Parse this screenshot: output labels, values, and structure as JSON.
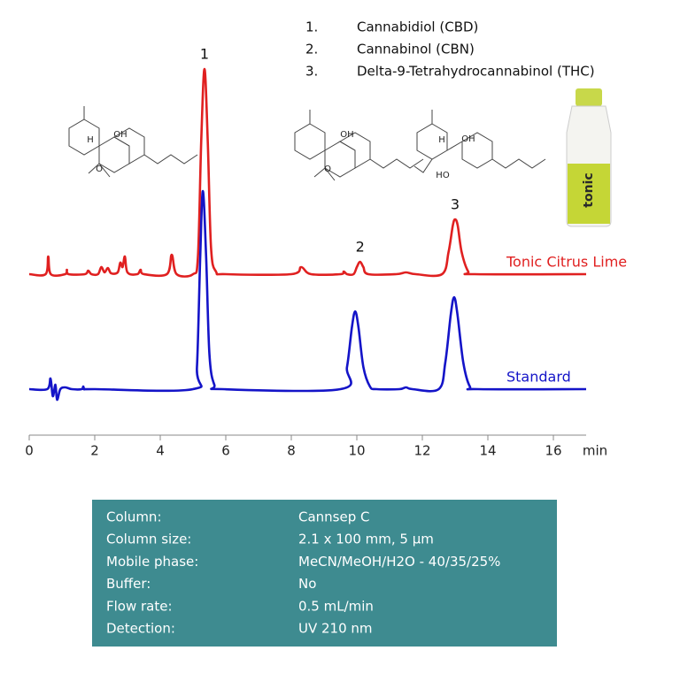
{
  "chart_data": {
    "type": "line",
    "x_label": "min",
    "xlim": [
      0,
      17
    ],
    "xticks": [
      0,
      2,
      4,
      6,
      8,
      10,
      12,
      14,
      16
    ],
    "ylim": [
      -20,
      240
    ],
    "series": [
      {
        "name": "Tonic Citrus Lime",
        "color": "#e02020",
        "x": [
          0,
          0.5,
          0.58,
          0.66,
          1.1,
          1.15,
          1.2,
          1.7,
          1.8,
          1.9,
          2.1,
          2.2,
          2.3,
          2.4,
          2.5,
          2.7,
          2.78,
          2.85,
          2.92,
          3.0,
          3.3,
          3.4,
          3.5,
          4.2,
          4.35,
          4.5,
          5.0,
          5.15,
          5.25,
          5.35,
          5.45,
          5.55,
          5.7,
          6.0,
          8.0,
          8.3,
          8.6,
          9.5,
          9.6,
          9.7,
          9.9,
          10.0,
          10.1,
          10.2,
          10.35,
          11.2,
          11.5,
          11.8,
          12.6,
          12.8,
          12.93,
          13.0,
          13.08,
          13.2,
          13.4,
          13.6,
          17
        ],
        "values": [
          0,
          0,
          20,
          0,
          0,
          5,
          0,
          0,
          4,
          0,
          0,
          8,
          2,
          7,
          1,
          2,
          13,
          8,
          20,
          2,
          0,
          5,
          0,
          0,
          22,
          0,
          0,
          20,
          150,
          232,
          150,
          30,
          3,
          0,
          0,
          8,
          0,
          0,
          3,
          0,
          0,
          8,
          14,
          8,
          0,
          0,
          2,
          0,
          0,
          25,
          55,
          62,
          55,
          25,
          3,
          0,
          0
        ]
      },
      {
        "name": "Standard",
        "color": "#1414c8",
        "x": [
          0,
          0.55,
          0.65,
          0.72,
          0.8,
          0.85,
          0.95,
          1.1,
          1.3,
          1.6,
          1.65,
          1.7,
          2,
          5.0,
          5.12,
          5.22,
          5.3,
          5.4,
          5.5,
          5.65,
          5.9,
          9.5,
          9.7,
          9.85,
          9.95,
          10.05,
          10.2,
          10.4,
          10.6,
          11.3,
          11.5,
          11.7,
          12.5,
          12.7,
          12.87,
          12.97,
          13.07,
          13.25,
          13.45,
          13.7,
          17
        ],
        "values": [
          0,
          0,
          12,
          -8,
          5,
          -12,
          0,
          2,
          0,
          0,
          3,
          0,
          0,
          0,
          25,
          150,
          224,
          150,
          40,
          5,
          0,
          0,
          25,
          70,
          88,
          70,
          25,
          3,
          0,
          0,
          2,
          0,
          0,
          30,
          85,
          104,
          85,
          30,
          3,
          0,
          0
        ]
      }
    ],
    "annotations": [
      {
        "text": "1",
        "x": 5.35
      },
      {
        "text": "2",
        "x": 10.1
      },
      {
        "text": "3",
        "x": 13.0
      }
    ],
    "peak_list": [
      {
        "number": "1.",
        "name": "Cannabidiol (CBD)"
      },
      {
        "number": "2.",
        "name": "Cannabinol (CBN)"
      },
      {
        "number": "3.",
        "name": "Delta-9-Tetrahydrocannabinol  (THC)"
      }
    ]
  },
  "structures": [
    [
      "H",
      "OH",
      "O"
    ],
    [
      "OH",
      "O"
    ],
    [
      "H",
      "OH",
      "HO"
    ]
  ],
  "product_label": "tonic",
  "conditions": [
    [
      "Column:",
      "Cannsep C"
    ],
    [
      "Column size:",
      "2.1 x 100 mm, 5 µm"
    ],
    [
      "Mobile phase:",
      "MeCN/MeOH/H2O  - 40/35/25%"
    ],
    [
      "Buffer:",
      "No"
    ],
    [
      "Flow  rate:",
      "0.5 mL/min"
    ],
    [
      "Detection:",
      "UV 210 nm"
    ]
  ]
}
